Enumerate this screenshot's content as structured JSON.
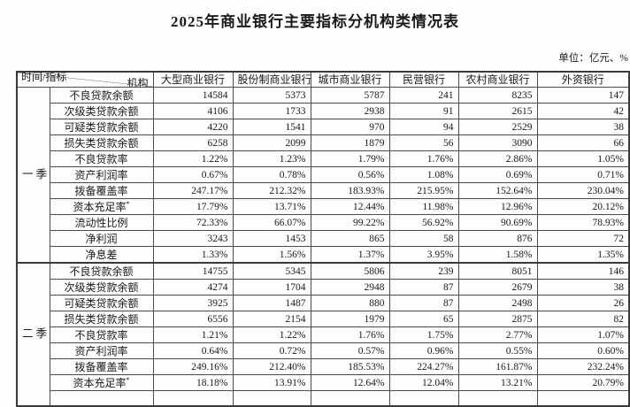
{
  "title": "2025年商业银行主要指标分机构类情况表",
  "unit_label": "单位：亿元、%",
  "table": {
    "corner": {
      "top_label": "机构",
      "bottom_label": "时间/指标"
    },
    "columns": [
      "大型商业银行",
      "股份制商业银行",
      "城市商业银行",
      "民营银行",
      "农村商业银行",
      "外资银行"
    ],
    "trailing_empty_row": true,
    "sections": [
      {
        "period": "一季度",
        "rows": [
          {
            "label": "不良贷款余额",
            "values": [
              "14584",
              "5373",
              "5787",
              "241",
              "8235",
              "147"
            ]
          },
          {
            "label": "次级类贷款余额",
            "values": [
              "4106",
              "1733",
              "2938",
              "91",
              "2615",
              "42"
            ]
          },
          {
            "label": "可疑类贷款余额",
            "values": [
              "4220",
              "1541",
              "970",
              "94",
              "2529",
              "38"
            ]
          },
          {
            "label": "损失类贷款余额",
            "values": [
              "6258",
              "2099",
              "1879",
              "56",
              "3090",
              "66"
            ]
          },
          {
            "label": "不良贷款率",
            "values": [
              "1.22%",
              "1.23%",
              "1.79%",
              "1.76%",
              "2.86%",
              "1.05%"
            ]
          },
          {
            "label": "资产利润率",
            "values": [
              "0.67%",
              "0.78%",
              "0.56%",
              "1.08%",
              "0.69%",
              "0.71%"
            ]
          },
          {
            "label": "拨备覆盖率",
            "values": [
              "247.17%",
              "212.32%",
              "183.93%",
              "215.95%",
              "152.64%",
              "230.04%"
            ]
          },
          {
            "label": "资本充足率",
            "sup": "*",
            "values": [
              "17.79%",
              "13.71%",
              "12.44%",
              "11.98%",
              "12.96%",
              "20.12%"
            ]
          },
          {
            "label": "流动性比例",
            "values": [
              "72.33%",
              "66.07%",
              "99.22%",
              "56.92%",
              "90.69%",
              "78.93%"
            ]
          },
          {
            "label": "净利润",
            "values": [
              "3243",
              "1453",
              "865",
              "58",
              "876",
              "72"
            ]
          },
          {
            "label": "净息差",
            "values": [
              "1.33%",
              "1.56%",
              "1.37%",
              "3.95%",
              "1.58%",
              "1.35%"
            ]
          }
        ]
      },
      {
        "period": "二季度",
        "rows": [
          {
            "label": "不良贷款余额",
            "values": [
              "14755",
              "5345",
              "5806",
              "239",
              "8051",
              "146"
            ]
          },
          {
            "label": "次级类贷款余额",
            "values": [
              "4274",
              "1704",
              "2948",
              "87",
              "2679",
              "38"
            ]
          },
          {
            "label": "可疑类贷款余额",
            "values": [
              "3925",
              "1487",
              "880",
              "87",
              "2498",
              "26"
            ]
          },
          {
            "label": "损失类贷款余额",
            "values": [
              "6556",
              "2154",
              "1979",
              "65",
              "2875",
              "82"
            ]
          },
          {
            "label": "不良贷款率",
            "values": [
              "1.21%",
              "1.22%",
              "1.76%",
              "1.75%",
              "2.77%",
              "1.07%"
            ]
          },
          {
            "label": "资产利润率",
            "values": [
              "0.64%",
              "0.72%",
              "0.57%",
              "0.96%",
              "0.55%",
              "0.60%"
            ]
          },
          {
            "label": "拨备覆盖率",
            "values": [
              "249.16%",
              "212.40%",
              "185.53%",
              "224.27%",
              "161.87%",
              "232.24%"
            ]
          },
          {
            "label": "资本充足率",
            "sup": "*",
            "values": [
              "18.18%",
              "13.91%",
              "12.64%",
              "12.04%",
              "13.21%",
              "20.79%"
            ]
          }
        ]
      }
    ]
  },
  "colors": {
    "text": "#1a1a1a",
    "border": "#4a4a4a",
    "background": "#fdfdfd"
  }
}
